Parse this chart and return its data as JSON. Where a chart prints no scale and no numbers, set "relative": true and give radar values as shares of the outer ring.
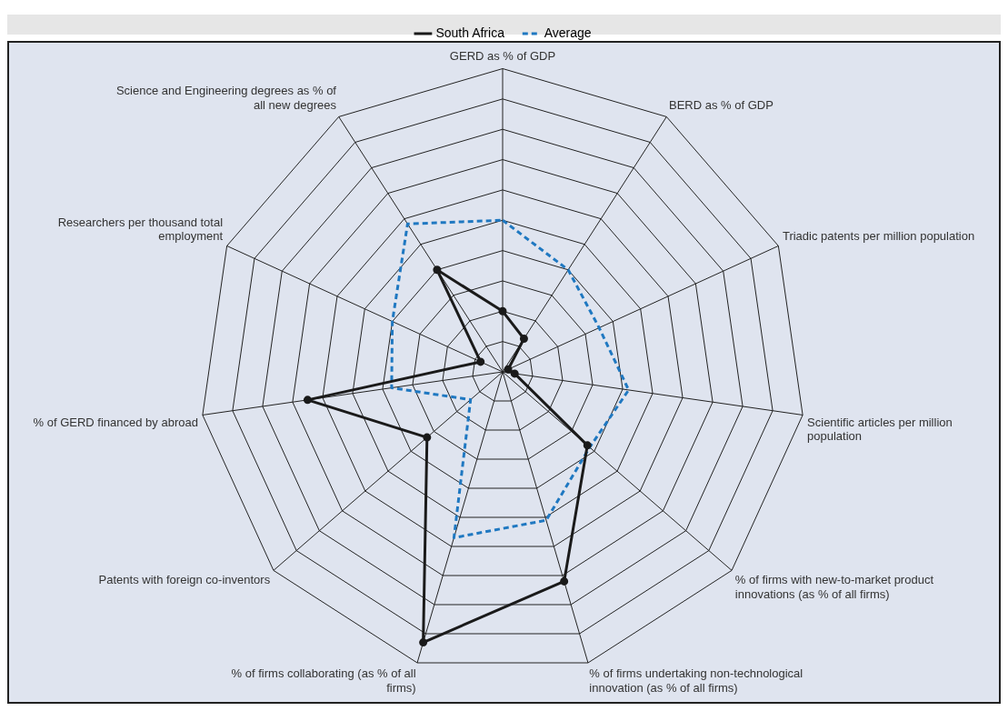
{
  "chart_data": {
    "type": "radar",
    "relative": true,
    "legend": "top",
    "grid": true,
    "categories": [
      "GERD as % of GDP",
      "BERD as % of GDP",
      "Triadic patents per million population",
      "Scientific articles per million population",
      "% of firms with new-to-market product innovations (as % of all firms)",
      "% of firms undertaking non-technological innovation (as % of all firms)",
      "% of firms collaborating (as % of all firms)",
      "Patents with foreign co-inventors",
      "% of GERD financed by abroad",
      "Researchers per thousand total employment",
      "Science and Engineering degrees as % of all new degrees"
    ],
    "series": [
      {
        "name": "South Africa",
        "color": "#1a1a1a",
        "line_style": "solid",
        "marker": "circle",
        "values": [
          0.2,
          0.13,
          0.02,
          0.04,
          0.37,
          0.72,
          0.93,
          0.33,
          0.65,
          0.08,
          0.4
        ]
      },
      {
        "name": "Average",
        "color": "#1f78c1",
        "line_style": "dashed",
        "marker": "none",
        "values": [
          0.5,
          0.4,
          0.35,
          0.42,
          0.38,
          0.51,
          0.57,
          0.14,
          0.37,
          0.4,
          0.58
        ]
      }
    ]
  }
}
